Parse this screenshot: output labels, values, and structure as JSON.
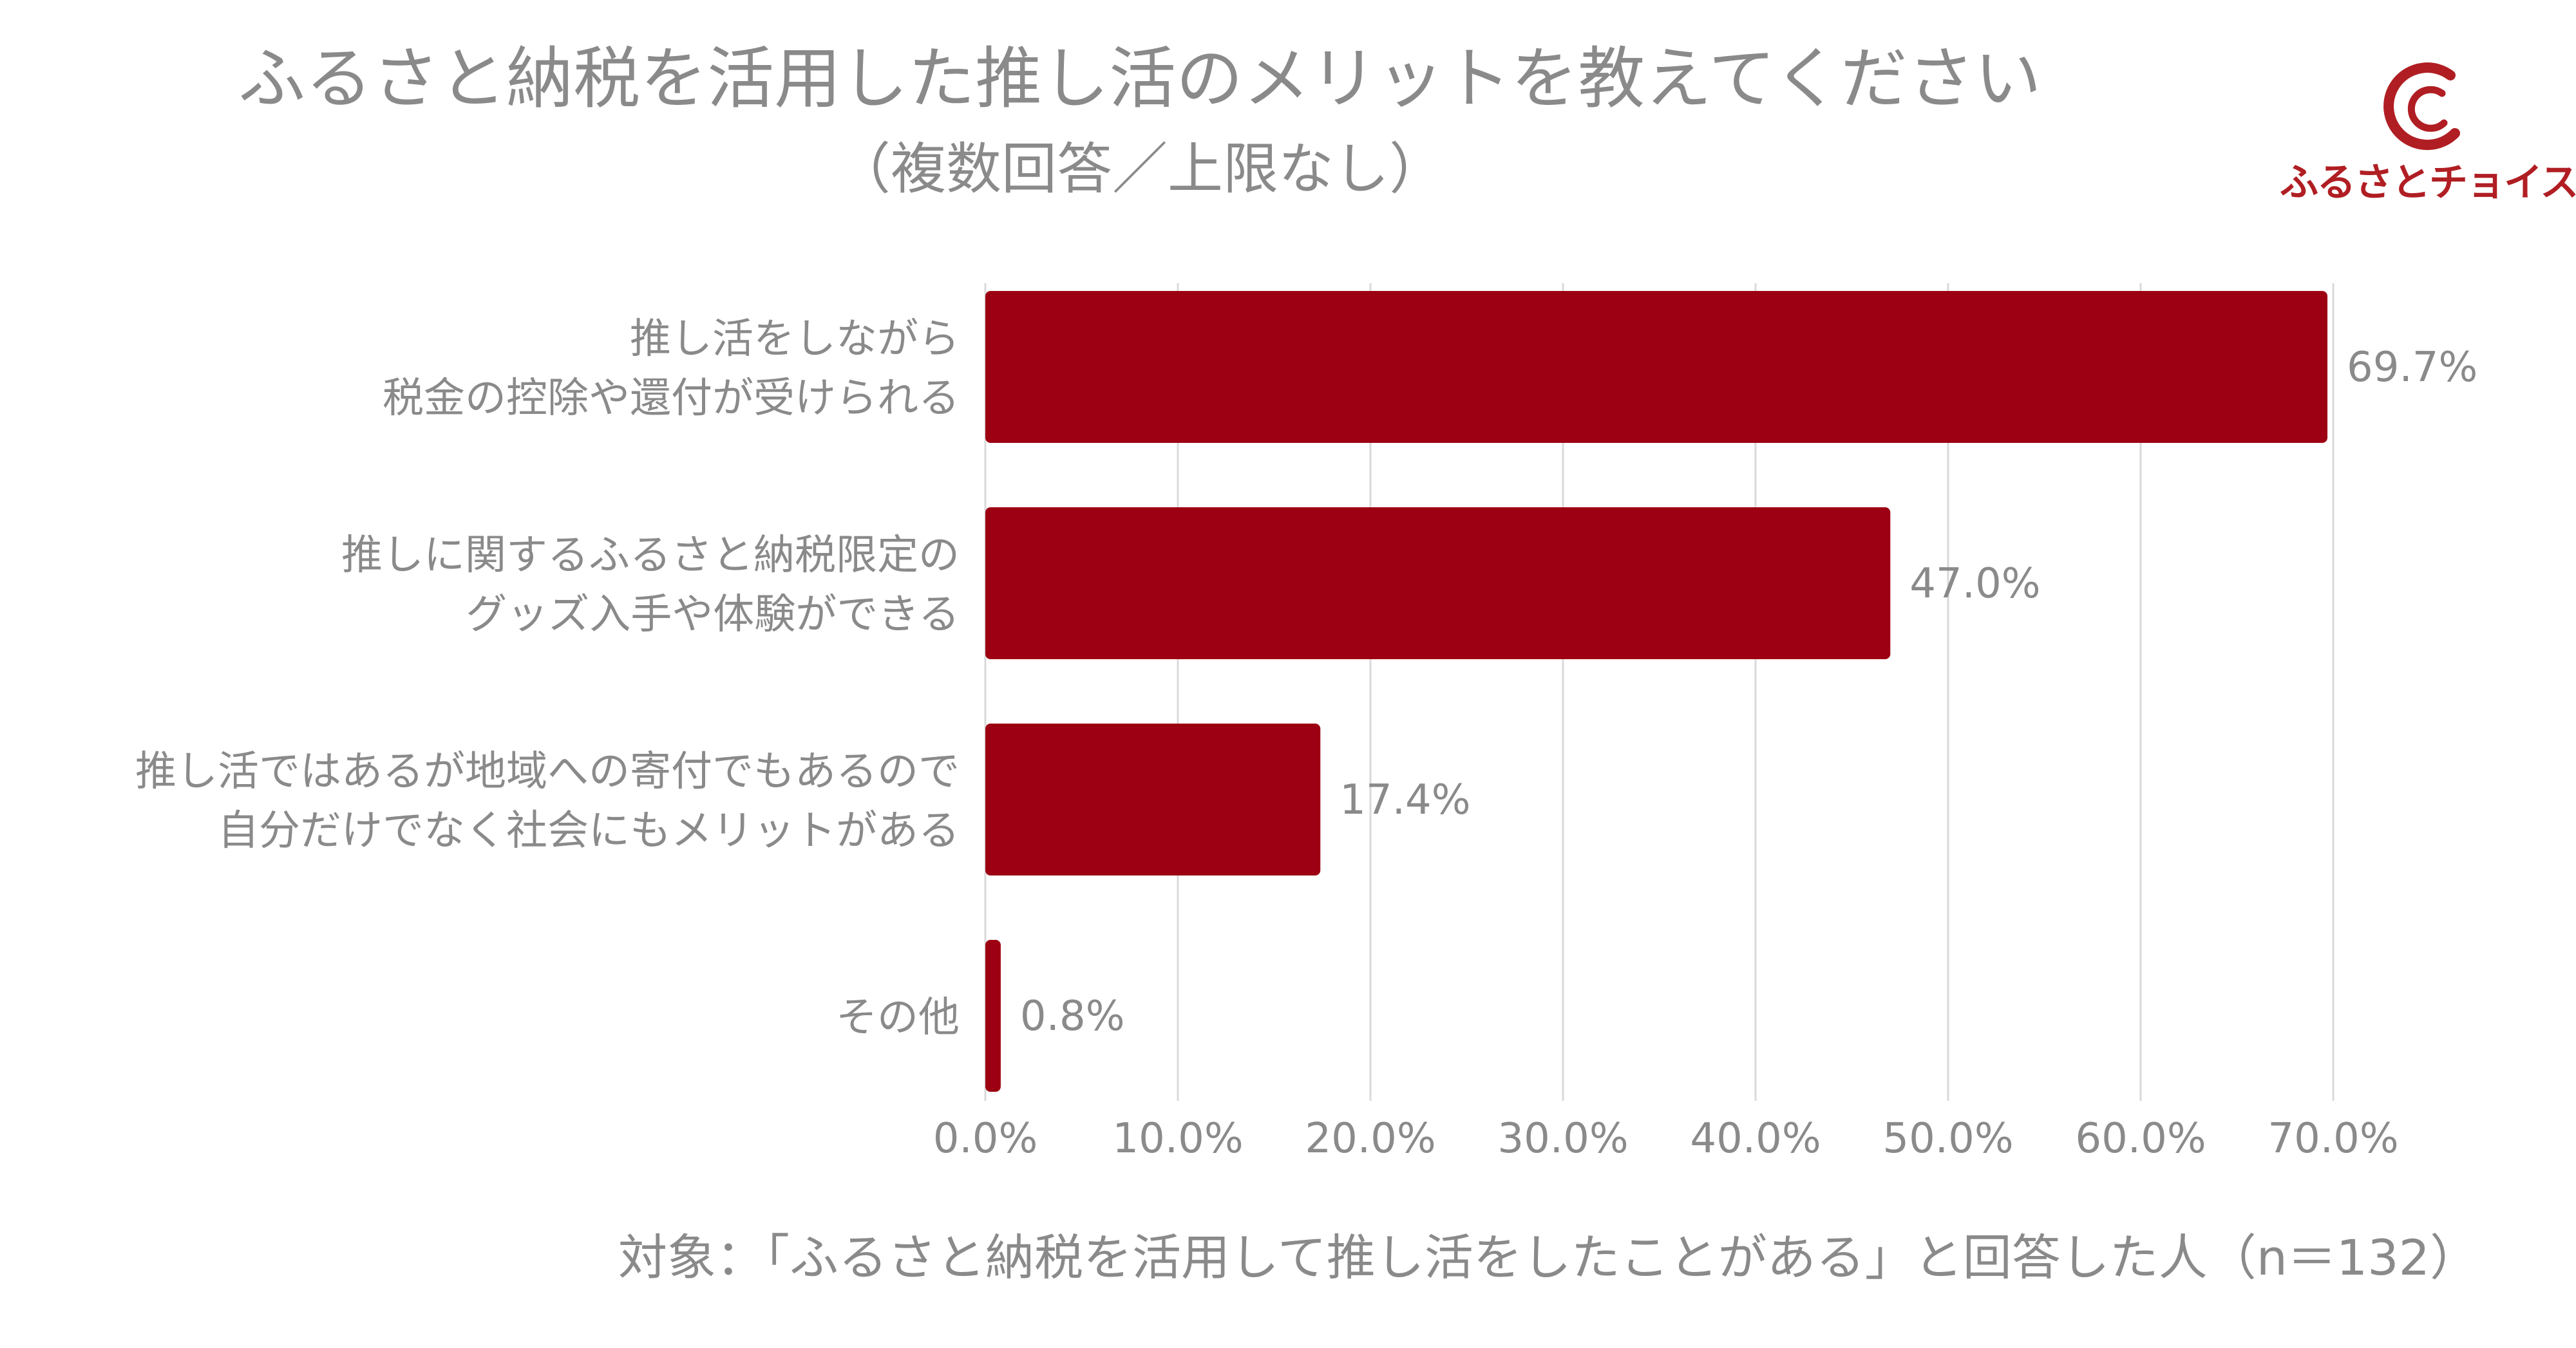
{
  "title": "ふるさと納税を活用した推し活のメリットを教えてください",
  "subtitle": "（複数回答／上限なし）",
  "logo": {
    "text": "ふるさとチョイス",
    "color": "#b01e23"
  },
  "footnote": "対象：「ふるさと納税を活用して推し活をしたことがある」と回答した人（n＝132）",
  "colors": {
    "bar": "#9d0012",
    "grid": "#d9d9d9",
    "text": "#8a8a8a"
  },
  "chart_data": {
    "type": "bar",
    "orientation": "horizontal",
    "categories": [
      [
        "推し活をしながら",
        "税金の控除や還付が受けられる"
      ],
      [
        "推しに関するふるさと納税限定の",
        "グッズ入手や体験ができる"
      ],
      [
        "推し活ではあるが地域への寄付でもあるので",
        "自分だけでなく社会にもメリットがある"
      ],
      [
        "その他"
      ]
    ],
    "values": [
      69.7,
      47.0,
      17.4,
      0.8
    ],
    "data_labels": [
      "69.7%",
      "47.0%",
      "17.4%",
      "0.8%"
    ],
    "xlim": [
      0,
      70
    ],
    "x_ticks": [
      0,
      10,
      20,
      30,
      40,
      50,
      60,
      70
    ],
    "x_tick_labels": [
      "0.0%",
      "10.0%",
      "20.0%",
      "30.0%",
      "40.0%",
      "50.0%",
      "60.0%",
      "70.0%"
    ],
    "grid": true,
    "title": "ふるさと納税を活用した推し活のメリットを教えてください",
    "xlabel": "",
    "ylabel": ""
  }
}
